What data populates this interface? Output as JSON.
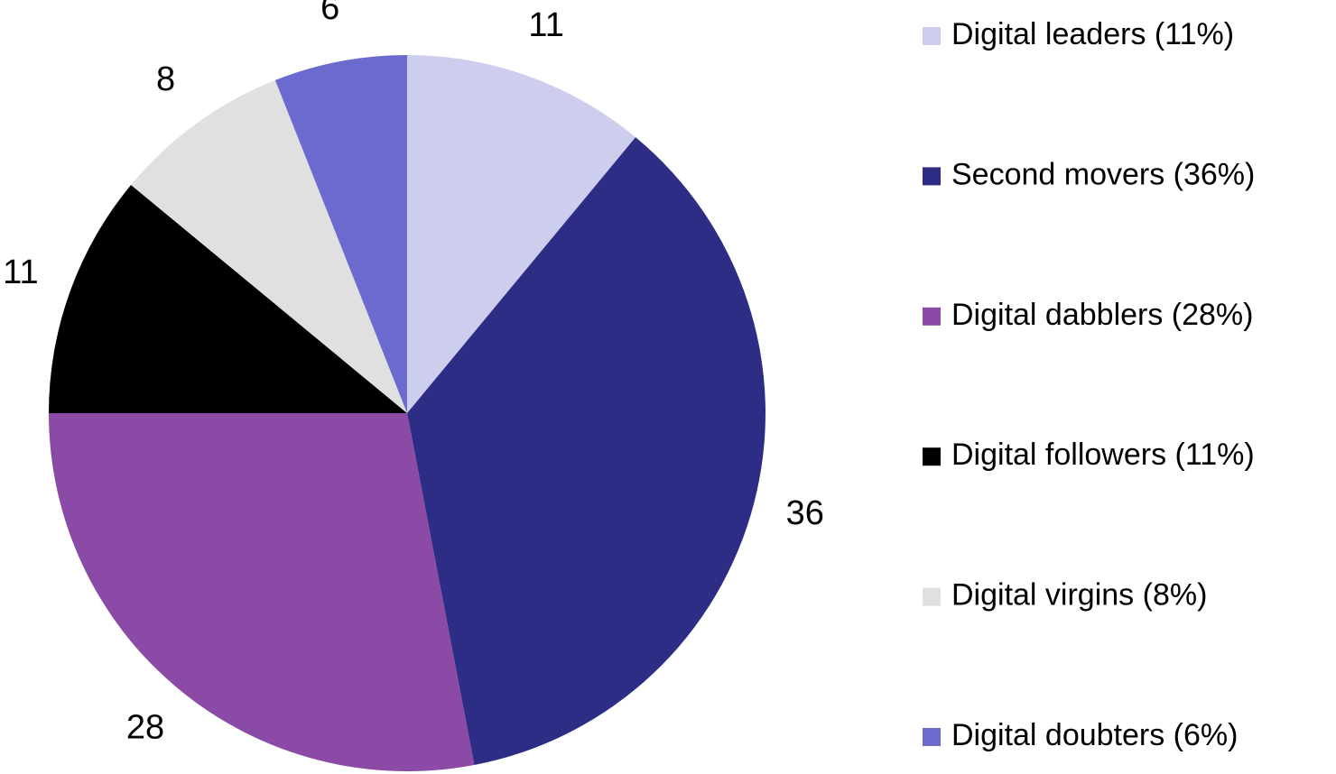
{
  "chart_data": {
    "type": "pie",
    "categories": [
      "Digital leaders (11%)",
      "Second movers (36%)",
      "Digital dabblers (28%)",
      "Digital followers (11%)",
      "Digital virgins (8%)",
      "Digital doubters (6%)"
    ],
    "values": [
      11,
      36,
      28,
      11,
      8,
      6
    ],
    "colors": [
      "#cdcdee",
      "#2e2d86",
      "#8b4aa5",
      "#000000",
      "#e0e0e0",
      "#6b6bcf"
    ],
    "legend": "right"
  }
}
